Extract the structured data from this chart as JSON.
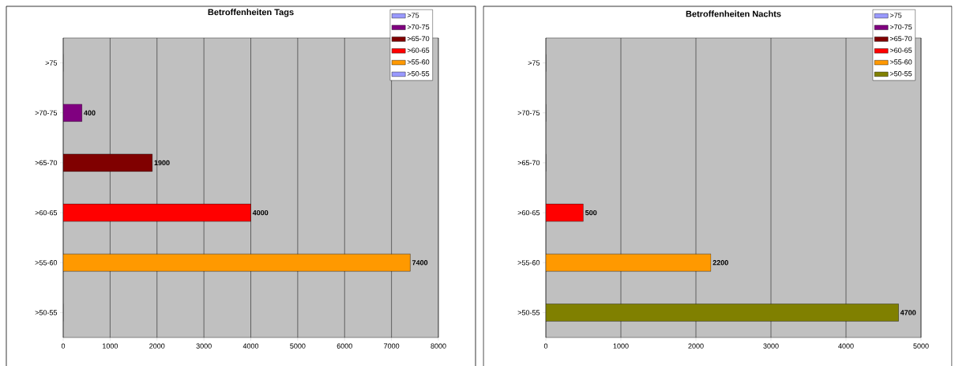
{
  "chart_data": [
    {
      "type": "bar",
      "orientation": "horizontal",
      "title": "Betroffenheiten Tags",
      "categories": [
        ">75",
        ">70-75",
        ">65-70",
        ">60-65",
        ">55-60",
        ">50-55"
      ],
      "series": [
        {
          "name": ">75",
          "color": "#9999ff",
          "values": [
            0,
            null,
            null,
            null,
            null,
            null
          ],
          "value_labels": [
            null,
            null,
            null,
            null,
            null,
            null
          ]
        },
        {
          "name": ">70-75",
          "color": "#800080",
          "values": [
            null,
            400,
            null,
            null,
            null,
            null
          ],
          "value_labels": [
            null,
            "400",
            null,
            null,
            null,
            null
          ]
        },
        {
          "name": ">65-70",
          "color": "#800000",
          "values": [
            null,
            null,
            1900,
            null,
            null,
            null
          ],
          "value_labels": [
            null,
            null,
            "1900",
            null,
            null,
            null
          ]
        },
        {
          "name": ">60-65",
          "color": "#ff0000",
          "values": [
            null,
            null,
            null,
            4000,
            null,
            null
          ],
          "value_labels": [
            null,
            null,
            null,
            "4000",
            null,
            null
          ]
        },
        {
          "name": ">55-60",
          "color": "#ff9900",
          "values": [
            null,
            null,
            null,
            null,
            7400,
            null
          ],
          "value_labels": [
            null,
            null,
            null,
            null,
            "7400",
            null
          ]
        },
        {
          "name": ">50-55",
          "color": "#9999ff",
          "values": [
            null,
            null,
            null,
            null,
            null,
            0
          ],
          "value_labels": [
            null,
            null,
            null,
            null,
            null,
            null
          ]
        }
      ],
      "xlim": [
        0,
        8000
      ],
      "xticks": [
        0,
        1000,
        2000,
        3000,
        4000,
        5000,
        6000,
        7000,
        8000
      ],
      "grid": "x",
      "legend": "top right"
    },
    {
      "type": "bar",
      "orientation": "horizontal",
      "title": "Betroffenheiten Nachts",
      "categories": [
        ">75",
        ">70-75",
        ">65-70",
        ">60-65",
        ">55-60",
        ">50-55"
      ],
      "series": [
        {
          "name": ">75",
          "color": "#9999ff",
          "values": [
            0,
            null,
            null,
            null,
            null,
            null
          ],
          "value_labels": [
            null,
            null,
            null,
            null,
            null,
            null
          ]
        },
        {
          "name": ">70-75",
          "color": "#800080",
          "values": [
            null,
            0,
            null,
            null,
            null,
            null
          ],
          "value_labels": [
            null,
            null,
            null,
            null,
            null,
            null
          ]
        },
        {
          "name": ">65-70",
          "color": "#800000",
          "values": [
            null,
            null,
            0,
            null,
            null,
            null
          ],
          "value_labels": [
            null,
            null,
            null,
            null,
            null,
            null
          ]
        },
        {
          "name": ">60-65",
          "color": "#ff0000",
          "values": [
            null,
            null,
            null,
            500,
            null,
            null
          ],
          "value_labels": [
            null,
            null,
            null,
            "500",
            null,
            null
          ]
        },
        {
          "name": ">55-60",
          "color": "#ff9900",
          "values": [
            null,
            null,
            null,
            null,
            2200,
            null
          ],
          "value_labels": [
            null,
            null,
            null,
            null,
            "2200",
            null
          ]
        },
        {
          "name": ">50-55",
          "color": "#808000",
          "values": [
            null,
            null,
            null,
            null,
            null,
            4700
          ],
          "value_labels": [
            null,
            null,
            null,
            null,
            null,
            "4700"
          ]
        }
      ],
      "xlim": [
        0,
        5000
      ],
      "xticks": [
        0,
        1000,
        2000,
        3000,
        4000,
        5000
      ],
      "grid": "x",
      "legend": "top right"
    }
  ]
}
